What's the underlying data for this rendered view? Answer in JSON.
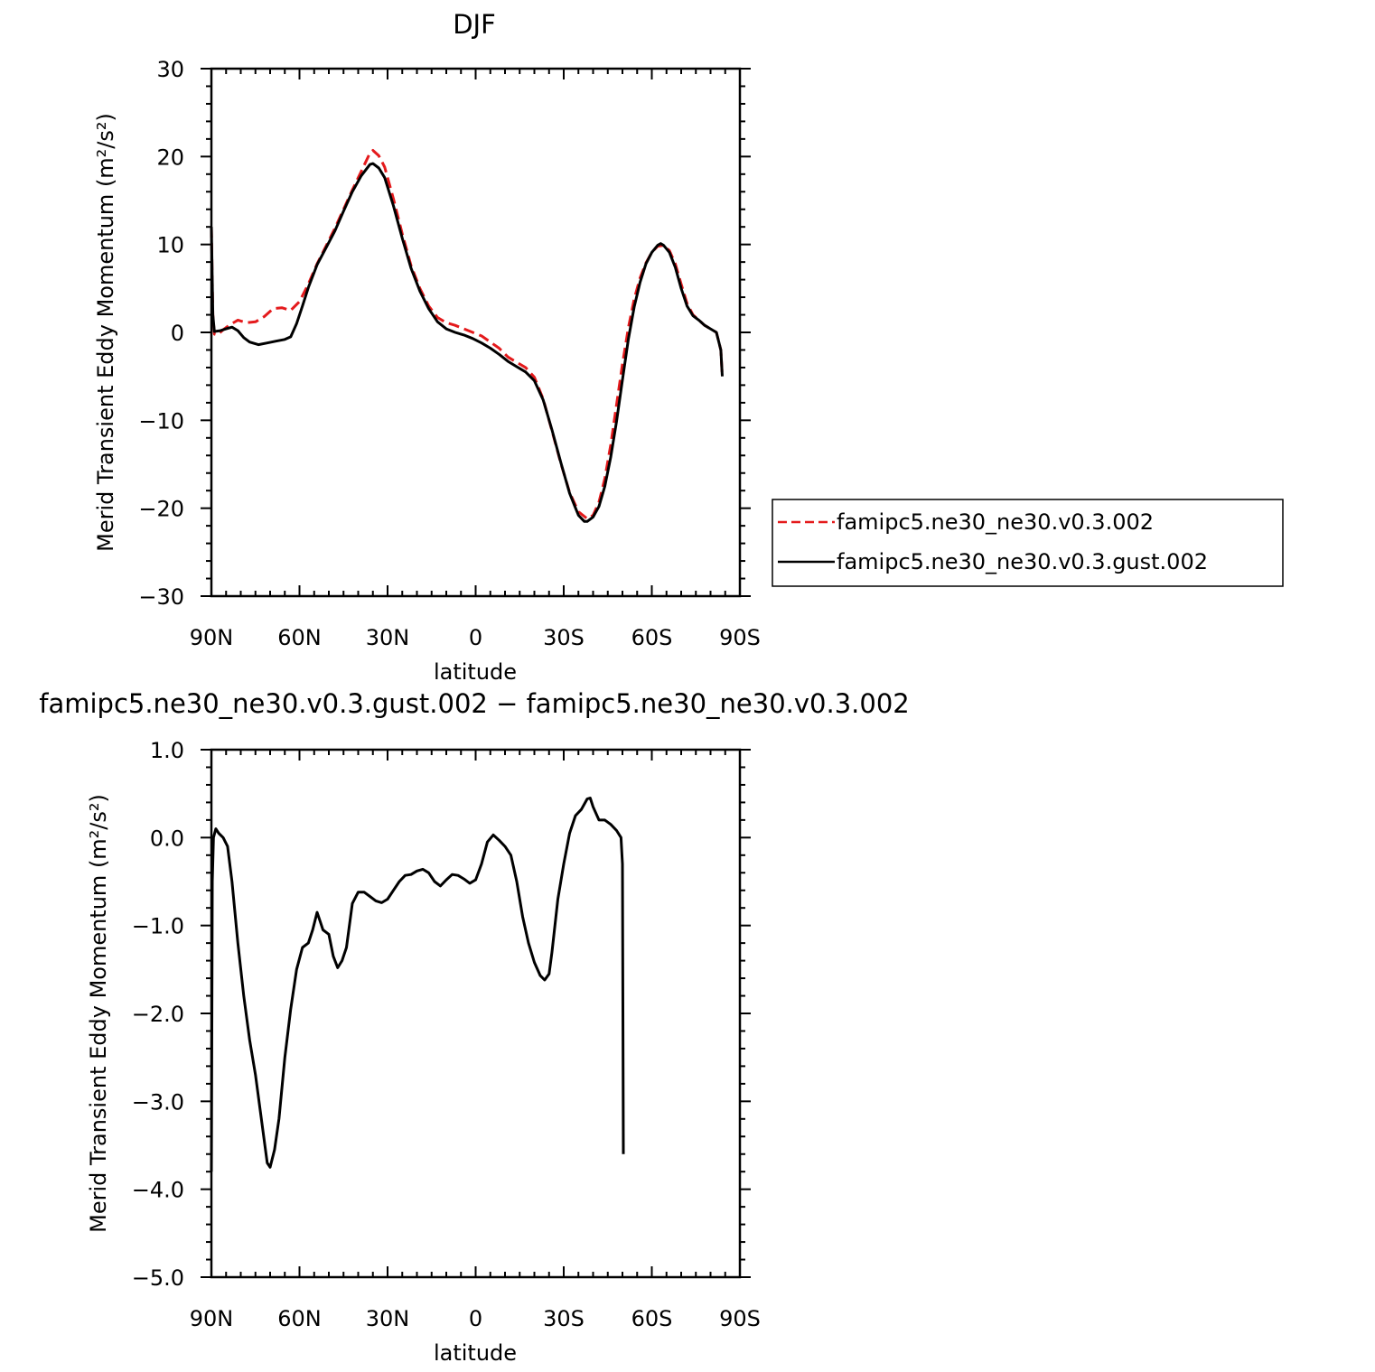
{
  "chart_data": [
    {
      "type": "line",
      "title": "DJF",
      "xlabel": "latitude",
      "ylabel": "Merid Transient Eddy Momentum (m²/s²)",
      "xlim": [
        90,
        -90
      ],
      "ylim": [
        -30,
        30
      ],
      "x_ticks": [
        {
          "value": 90,
          "label": "90N"
        },
        {
          "value": 60,
          "label": "60N"
        },
        {
          "value": 30,
          "label": "30N"
        },
        {
          "value": 0,
          "label": "0"
        },
        {
          "value": -30,
          "label": "30S"
        },
        {
          "value": -60,
          "label": "60S"
        },
        {
          "value": -90,
          "label": "90S"
        }
      ],
      "y_ticks": [
        {
          "value": 30,
          "label": "30"
        },
        {
          "value": 20,
          "label": "20"
        },
        {
          "value": 10,
          "label": "10"
        },
        {
          "value": 0,
          "label": "0"
        },
        {
          "value": -10,
          "label": "−10"
        },
        {
          "value": -20,
          "label": "−20"
        },
        {
          "value": -30,
          "label": "−30"
        }
      ],
      "legend": {
        "placement": "right"
      },
      "series": [
        {
          "name": "famipc5.ne30_ne30.v0.3.002",
          "color": "#e41a1c",
          "dash": "dashed",
          "points": [
            [
              90,
              12
            ],
            [
              89.5,
              2
            ],
            [
              89,
              -0.2
            ],
            [
              88,
              -0.3
            ],
            [
              86,
              0.3
            ],
            [
              84,
              0.8
            ],
            [
              81,
              1.4
            ],
            [
              78,
              1.1
            ],
            [
              75,
              1.2
            ],
            [
              72,
              1.8
            ],
            [
              69,
              2.7
            ],
            [
              66,
              2.8
            ],
            [
              63,
              2.5
            ],
            [
              60,
              3.5
            ],
            [
              57,
              5.5
            ],
            [
              54,
              7.8
            ],
            [
              51,
              9.8
            ],
            [
              48,
              11.8
            ],
            [
              45,
              14
            ],
            [
              42,
              16.2
            ],
            [
              39,
              18.3
            ],
            [
              36,
              20.4
            ],
            [
              35,
              20.7
            ],
            [
              33,
              20.1
            ],
            [
              31,
              18.8
            ],
            [
              28,
              15.2
            ],
            [
              25,
              11.2
            ],
            [
              22,
              7.6
            ],
            [
              19,
              5
            ],
            [
              16,
              3
            ],
            [
              13,
              1.7
            ],
            [
              10,
              1.1
            ],
            [
              7,
              0.8
            ],
            [
              4,
              0.4
            ],
            [
              1,
              0
            ],
            [
              -2,
              -0.4
            ],
            [
              -5,
              -1.1
            ],
            [
              -8,
              -1.8
            ],
            [
              -11,
              -2.8
            ],
            [
              -14,
              -3.4
            ],
            [
              -17,
              -4
            ],
            [
              -20,
              -5.1
            ],
            [
              -23,
              -7.6
            ],
            [
              -26,
              -11.2
            ],
            [
              -29,
              -14.9
            ],
            [
              -32,
              -18.2
            ],
            [
              -35,
              -20.4
            ],
            [
              -38,
              -21.2
            ],
            [
              -40,
              -20.8
            ],
            [
              -42,
              -19.3
            ],
            [
              -44,
              -16.6
            ],
            [
              -46,
              -12.8
            ],
            [
              -48,
              -8.2
            ],
            [
              -50,
              -3.6
            ],
            [
              -52,
              0.5
            ],
            [
              -54,
              3.8
            ],
            [
              -56,
              6.2
            ],
            [
              -58,
              7.9
            ],
            [
              -60,
              9.1
            ],
            [
              -62,
              9.8
            ],
            [
              -64,
              9.9
            ],
            [
              -66,
              9.3
            ],
            [
              -68,
              7.8
            ],
            [
              -70,
              5.5
            ],
            [
              -72,
              3.3
            ],
            [
              -74,
              2
            ],
            [
              -76,
              1.4
            ],
            [
              -78,
              0.8
            ],
            [
              -80,
              0.4
            ],
            [
              -82,
              0
            ],
            [
              -83.5,
              -2
            ],
            [
              -84,
              -5
            ]
          ]
        },
        {
          "name": "famipc5.ne30_ne30.v0.3.gust.002",
          "color": "#000000",
          "dash": "solid",
          "points": [
            [
              90,
              12
            ],
            [
              89.5,
              2
            ],
            [
              89,
              0.1
            ],
            [
              87,
              0.2
            ],
            [
              85,
              0.4
            ],
            [
              83,
              0.6
            ],
            [
              81,
              0.2
            ],
            [
              79,
              -0.6
            ],
            [
              77,
              -1.1
            ],
            [
              74,
              -1.4
            ],
            [
              71,
              -1.2
            ],
            [
              68,
              -1
            ],
            [
              65,
              -0.8
            ],
            [
              63,
              -0.5
            ],
            [
              61,
              1
            ],
            [
              59,
              3
            ],
            [
              57,
              5.1
            ],
            [
              54,
              7.7
            ],
            [
              51,
              9.6
            ],
            [
              48,
              11.5
            ],
            [
              45,
              13.8
            ],
            [
              42,
              16
            ],
            [
              39,
              17.8
            ],
            [
              36,
              19.1
            ],
            [
              35,
              19.2
            ],
            [
              33,
              18.7
            ],
            [
              31,
              17.6
            ],
            [
              28,
              14.4
            ],
            [
              25,
              10.7
            ],
            [
              22,
              7.3
            ],
            [
              19,
              4.7
            ],
            [
              16,
              2.7
            ],
            [
              13,
              1.2
            ],
            [
              10,
              0.4
            ],
            [
              7,
              0
            ],
            [
              4,
              -0.3
            ],
            [
              1,
              -0.7
            ],
            [
              -2,
              -1.2
            ],
            [
              -5,
              -1.8
            ],
            [
              -8,
              -2.5
            ],
            [
              -11,
              -3.3
            ],
            [
              -14,
              -3.9
            ],
            [
              -17,
              -4.5
            ],
            [
              -20,
              -5.5
            ],
            [
              -23,
              -7.7
            ],
            [
              -26,
              -11.1
            ],
            [
              -29,
              -14.8
            ],
            [
              -32,
              -18.3
            ],
            [
              -35,
              -20.8
            ],
            [
              -37,
              -21.5
            ],
            [
              -38,
              -21.5
            ],
            [
              -40,
              -21
            ],
            [
              -42,
              -19.8
            ],
            [
              -44,
              -17.5
            ],
            [
              -46,
              -14.2
            ],
            [
              -48,
              -10.1
            ],
            [
              -50,
              -5.4
            ],
            [
              -52,
              -0.8
            ],
            [
              -54,
              2.9
            ],
            [
              -56,
              5.7
            ],
            [
              -58,
              7.8
            ],
            [
              -60,
              9.1
            ],
            [
              -62,
              9.9
            ],
            [
              -63,
              10.1
            ],
            [
              -64,
              9.9
            ],
            [
              -66,
              9.1
            ],
            [
              -68,
              7.4
            ],
            [
              -70,
              5
            ],
            [
              -72,
              3
            ],
            [
              -74,
              1.9
            ],
            [
              -76,
              1.4
            ],
            [
              -78,
              0.8
            ],
            [
              -80,
              0.4
            ],
            [
              -82,
              0
            ],
            [
              -83.5,
              -2
            ],
            [
              -84,
              -5
            ]
          ]
        }
      ]
    },
    {
      "type": "line",
      "title": "famipc5.ne30_ne30.v0.3.gust.002 − famipc5.ne30_ne30.v0.3.002",
      "xlabel": "latitude",
      "ylabel": "Merid Transient Eddy Momentum (m²/s²)",
      "xlim": [
        90,
        -90
      ],
      "ylim": [
        -5,
        1
      ],
      "x_ticks": [
        {
          "value": 90,
          "label": "90N"
        },
        {
          "value": 60,
          "label": "60N"
        },
        {
          "value": 30,
          "label": "30N"
        },
        {
          "value": 0,
          "label": "0"
        },
        {
          "value": -30,
          "label": "30S"
        },
        {
          "value": -60,
          "label": "60S"
        },
        {
          "value": -90,
          "label": "90S"
        }
      ],
      "y_ticks": [
        {
          "value": 1,
          "label": "1.0"
        },
        {
          "value": 0,
          "label": "0.0"
        },
        {
          "value": -1,
          "label": "−1.0"
        },
        {
          "value": -2,
          "label": "−2.0"
        },
        {
          "value": -3,
          "label": "−3.0"
        },
        {
          "value": -4,
          "label": "−4.0"
        },
        {
          "value": -5,
          "label": "−5.0"
        }
      ],
      "series": [
        {
          "color": "#000000",
          "dash": "solid",
          "points": [
            [
              90,
              -3.8
            ],
            [
              89.7,
              -0.5
            ],
            [
              89.3,
              0
            ],
            [
              88.5,
              0.1
            ],
            [
              87.5,
              0.05
            ],
            [
              86,
              0
            ],
            [
              84.5,
              -0.1
            ],
            [
              83,
              -0.5
            ],
            [
              81,
              -1.2
            ],
            [
              79,
              -1.8
            ],
            [
              77,
              -2.3
            ],
            [
              75,
              -2.7
            ],
            [
              73,
              -3.2
            ],
            [
              71,
              -3.7
            ],
            [
              70,
              -3.75
            ],
            [
              68.5,
              -3.55
            ],
            [
              67,
              -3.2
            ],
            [
              65,
              -2.5
            ],
            [
              63,
              -1.95
            ],
            [
              61,
              -1.5
            ],
            [
              59,
              -1.25
            ],
            [
              57,
              -1.2
            ],
            [
              55.5,
              -1.05
            ],
            [
              54,
              -0.85
            ],
            [
              53,
              -0.95
            ],
            [
              52,
              -1.05
            ],
            [
              50,
              -1.1
            ],
            [
              48.5,
              -1.35
            ],
            [
              47,
              -1.48
            ],
            [
              45.5,
              -1.4
            ],
            [
              44,
              -1.25
            ],
            [
              42,
              -0.75
            ],
            [
              40,
              -0.62
            ],
            [
              38,
              -0.62
            ],
            [
              36,
              -0.67
            ],
            [
              34,
              -0.72
            ],
            [
              32,
              -0.74
            ],
            [
              30,
              -0.7
            ],
            [
              28,
              -0.6
            ],
            [
              26,
              -0.5
            ],
            [
              24,
              -0.43
            ],
            [
              22,
              -0.42
            ],
            [
              20,
              -0.38
            ],
            [
              18,
              -0.36
            ],
            [
              16,
              -0.4
            ],
            [
              14,
              -0.5
            ],
            [
              12,
              -0.55
            ],
            [
              10,
              -0.48
            ],
            [
              8,
              -0.42
            ],
            [
              6,
              -0.43
            ],
            [
              4,
              -0.47
            ],
            [
              2,
              -0.52
            ],
            [
              0,
              -0.48
            ],
            [
              -2,
              -0.3
            ],
            [
              -4,
              -0.05
            ],
            [
              -6,
              0.03
            ],
            [
              -8,
              -0.03
            ],
            [
              -10,
              -0.1
            ],
            [
              -12,
              -0.2
            ],
            [
              -14,
              -0.5
            ],
            [
              -16,
              -0.9
            ],
            [
              -18,
              -1.2
            ],
            [
              -20,
              -1.42
            ],
            [
              -22,
              -1.57
            ],
            [
              -23.5,
              -1.62
            ],
            [
              -25,
              -1.55
            ],
            [
              -26,
              -1.3
            ],
            [
              -28,
              -0.7
            ],
            [
              -30,
              -0.3
            ],
            [
              -32,
              0.05
            ],
            [
              -34,
              0.25
            ],
            [
              -36,
              0.32
            ],
            [
              -38,
              0.44
            ],
            [
              -39,
              0.45
            ],
            [
              -40,
              0.35
            ],
            [
              -42,
              0.2
            ],
            [
              -44,
              0.2
            ],
            [
              -46,
              0.15
            ],
            [
              -48,
              0.08
            ],
            [
              -49.5,
              0
            ],
            [
              -50,
              -0.3
            ],
            [
              -50.3,
              -3.6
            ]
          ]
        }
      ]
    }
  ]
}
